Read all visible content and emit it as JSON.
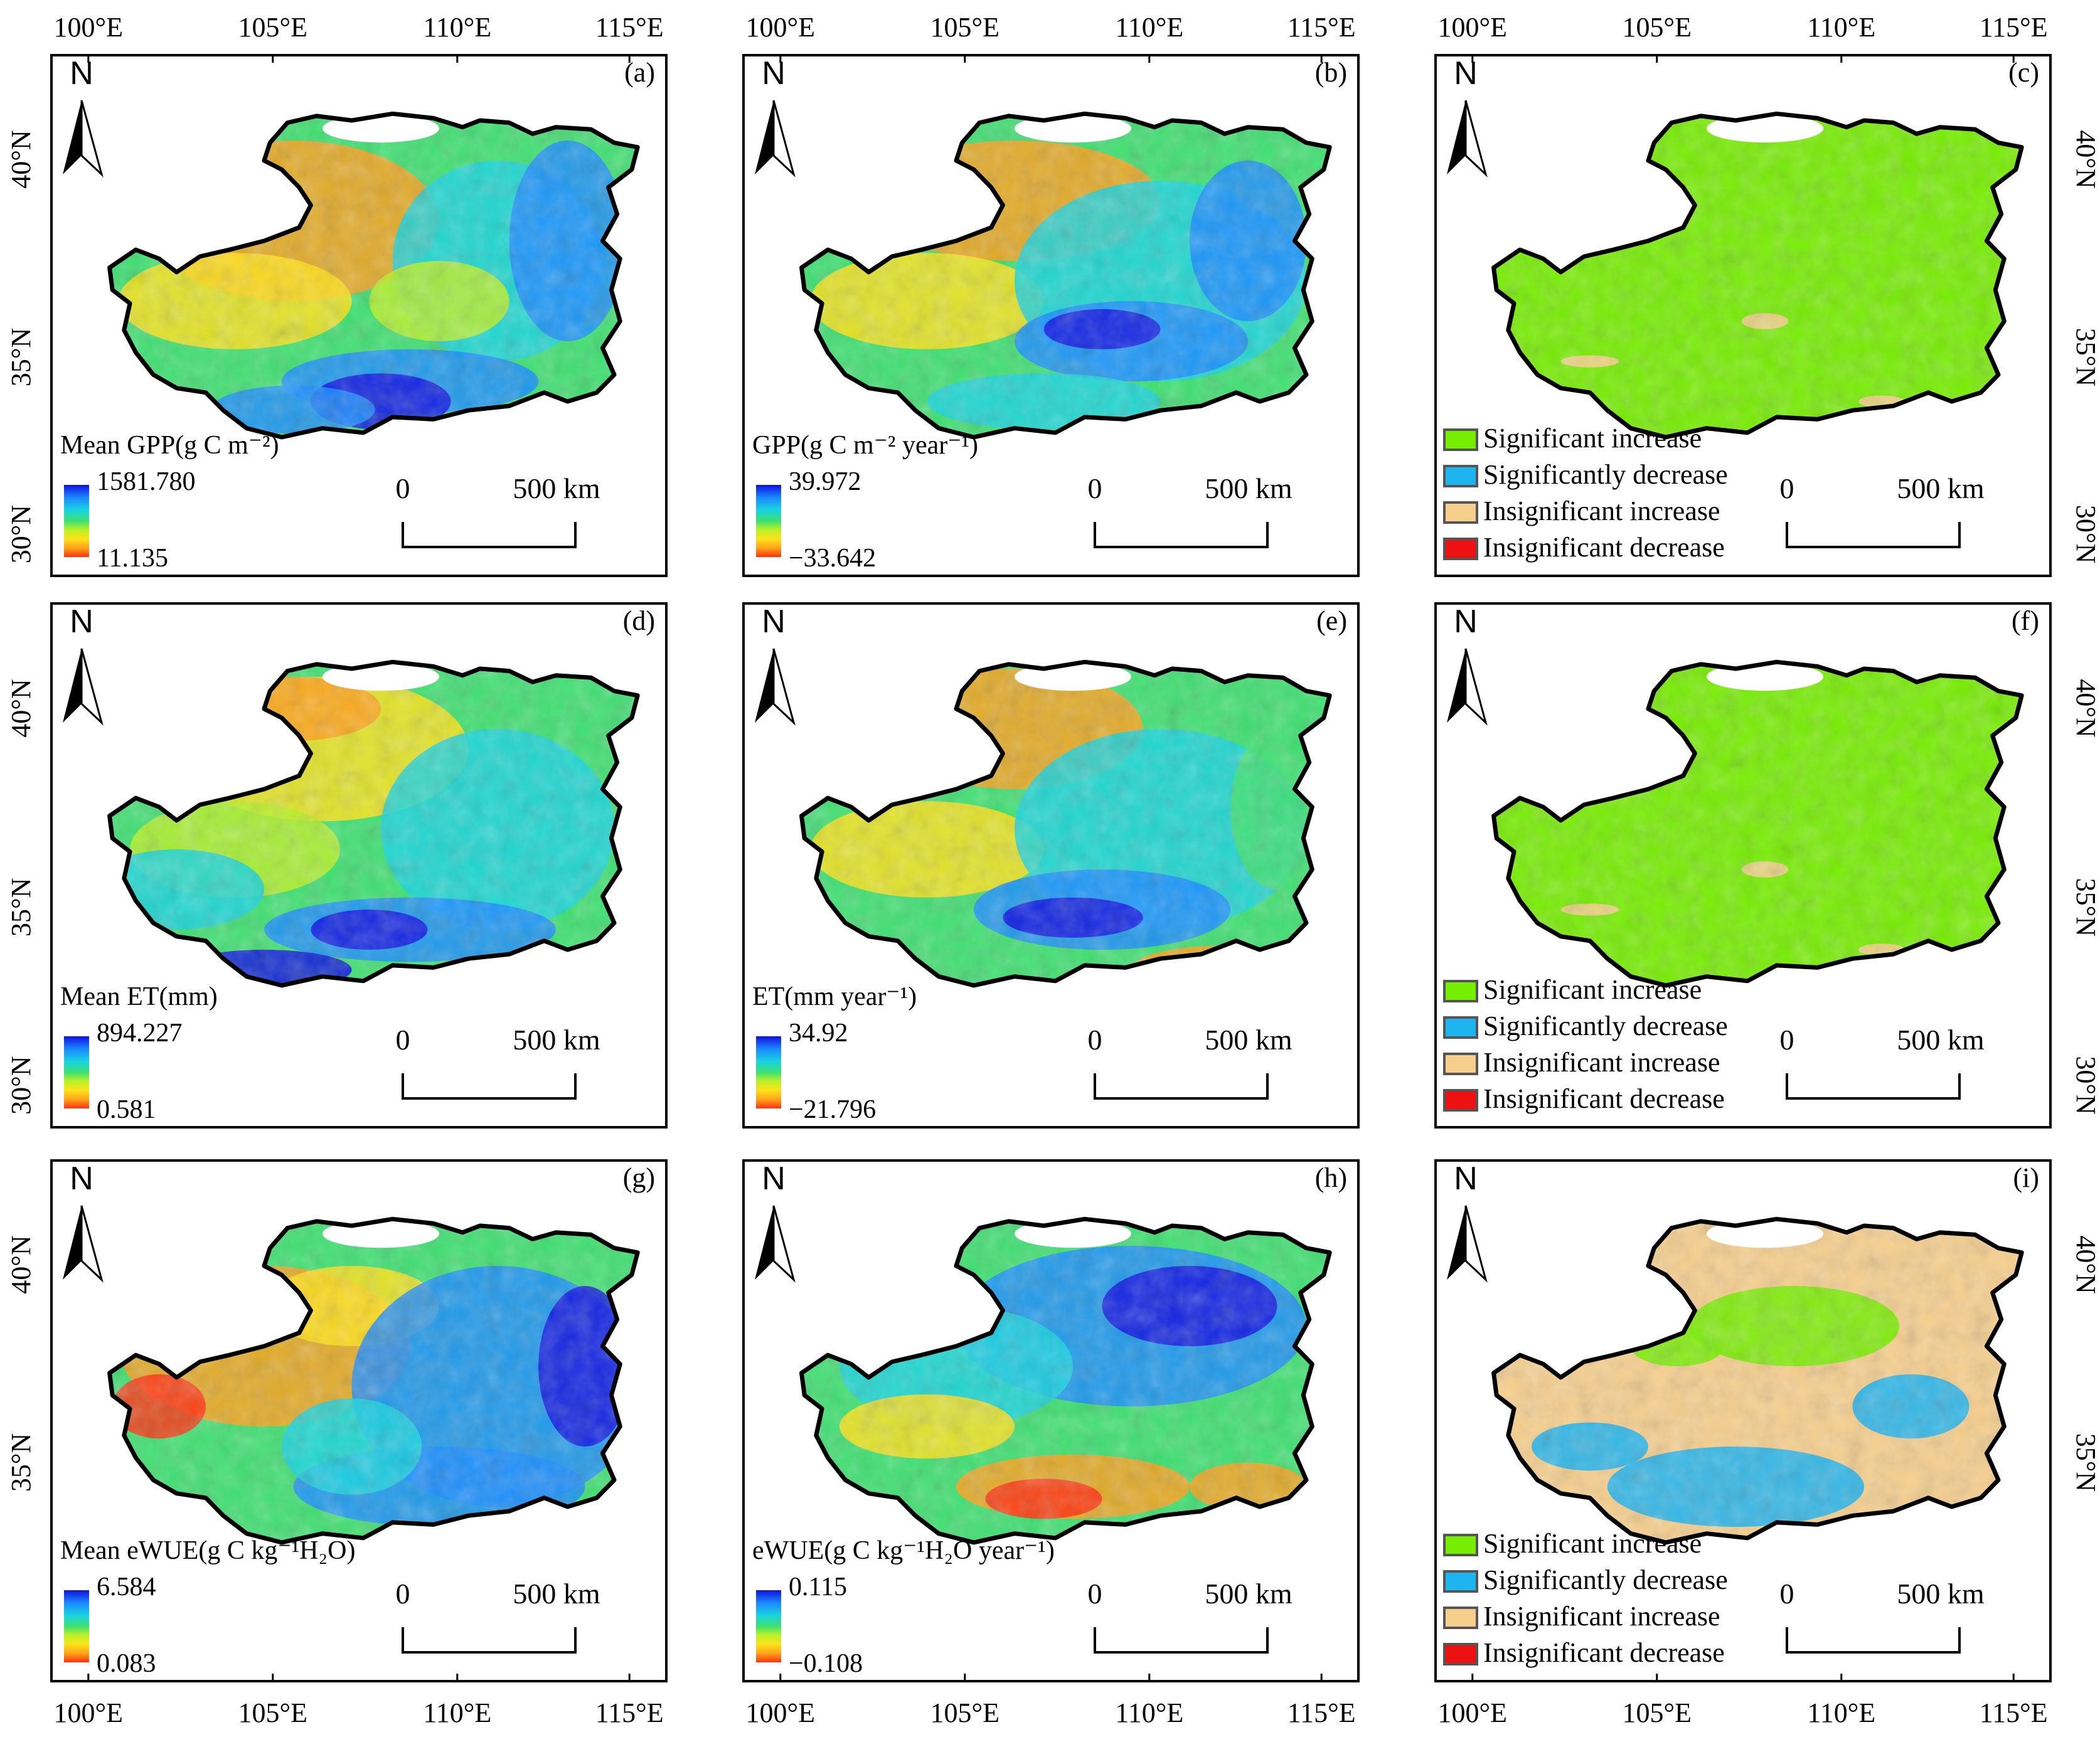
{
  "figure": {
    "top_axis": [
      "100°E",
      "105°E",
      "110°E",
      "115°E"
    ],
    "bottom_axis": [
      "100°E",
      "105°E",
      "110°E",
      "115°E"
    ],
    "left_axis": [
      "40°N",
      "35°N",
      "30°N"
    ],
    "left_axis_bottom_row": [
      "40°N",
      "35°N"
    ],
    "north_label": "N",
    "scale": {
      "zero": "0",
      "distance": "500",
      "unit": "km"
    },
    "legend_classes": [
      "Significant increase",
      "Significantly decrease",
      "Insignificant increase",
      "Insignificant decrease"
    ],
    "colors": {
      "sig_increase": "#76ee00",
      "sig_decrease": "#1eb4f0",
      "insig_increase": "#f7cf8c",
      "insig_decrease": "#ee1111",
      "ramp": [
        "#1010e0",
        "#1a8cff",
        "#19d4e0",
        "#3de070",
        "#b8f028",
        "#ffe21a",
        "#ffa01a",
        "#ff3010"
      ]
    }
  },
  "panels": [
    {
      "letter": "(a)",
      "legend_title": "Mean GPP(g C m⁻²)",
      "max": "1581.780",
      "min": "11.135",
      "kind": "ramp",
      "pattern": "mean_gpp"
    },
    {
      "letter": "(b)",
      "legend_title": "GPP(g C m⁻² year⁻¹)",
      "max": "39.972",
      "min": "−33.642",
      "kind": "ramp",
      "pattern": "trend_gpp"
    },
    {
      "letter": "(c)",
      "kind": "class",
      "dominant": "sig_increase"
    },
    {
      "letter": "(d)",
      "legend_title": "Mean ET(mm)",
      "max": "894.227",
      "min": "0.581",
      "kind": "ramp",
      "pattern": "mean_et"
    },
    {
      "letter": "(e)",
      "legend_title": "ET(mm year⁻¹)",
      "max": "34.92",
      "min": "−21.796",
      "kind": "ramp",
      "pattern": "trend_et"
    },
    {
      "letter": "(f)",
      "kind": "class",
      "dominant": "sig_increase"
    },
    {
      "letter": "(g)",
      "legend_title": "Mean eWUE(g C kg⁻¹H₂O)",
      "max": "6.584",
      "min": "0.083",
      "kind": "ramp",
      "pattern": "mean_wue"
    },
    {
      "letter": "(h)",
      "legend_title": "eWUE(g C kg⁻¹H₂O year⁻¹)",
      "max": "0.115",
      "min": "−0.108",
      "kind": "ramp",
      "pattern": "trend_wue"
    },
    {
      "letter": "(i)",
      "kind": "class",
      "dominant": "insig_increase"
    }
  ]
}
